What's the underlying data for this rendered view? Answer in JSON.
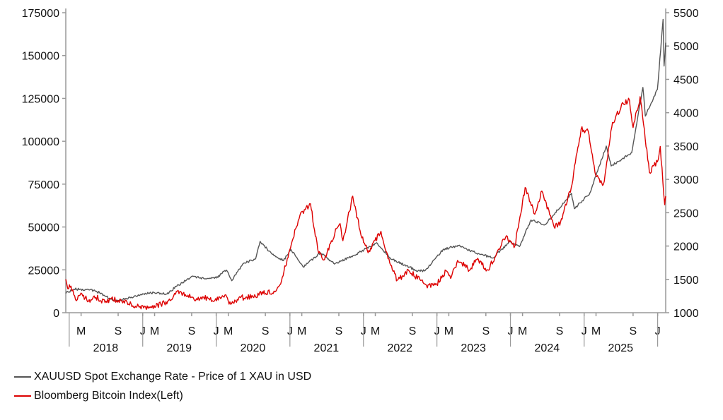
{
  "colors": {
    "gold": "#555555",
    "bitcoin": "#dd0000",
    "axis": "#999999"
  },
  "chart_data": {
    "type": "line",
    "x_range": [
      "2017-12-15",
      "2026-02-10"
    ],
    "y_left": {
      "min": 0,
      "max": 175000,
      "ticks": [
        "0",
        "25000",
        "50000",
        "75000",
        "100000",
        "125000",
        "150000",
        "175000"
      ]
    },
    "y_right": {
      "min": 1000,
      "max": 5500,
      "ticks": [
        "1000",
        "1500",
        "2000",
        "2500",
        "3000",
        "3500",
        "4000",
        "4500",
        "5000",
        "5500"
      ]
    },
    "month_ticks": [
      "M",
      "S",
      "J",
      "M",
      "S",
      "J",
      "M",
      "S",
      "J",
      "M",
      "S",
      "J",
      "M",
      "S",
      "J",
      "M",
      "S",
      "J",
      "M",
      "S",
      "J",
      "M",
      "S",
      "J",
      "M",
      "S",
      "J"
    ],
    "years": [
      "2018",
      "2019",
      "2020",
      "2021",
      "2022",
      "2023",
      "2024",
      "2025"
    ],
    "series": [
      {
        "name": "XAUUSD Spot Exchange Rate - Price of 1 XAU in USD",
        "axis": "right",
        "points": [
          [
            "2017-12-15",
            1290
          ],
          [
            "2018-01-25",
            1355
          ],
          [
            "2018-04-15",
            1345
          ],
          [
            "2018-06-01",
            1300
          ],
          [
            "2018-08-16",
            1175
          ],
          [
            "2018-11-01",
            1225
          ],
          [
            "2019-01-01",
            1285
          ],
          [
            "2019-03-01",
            1300
          ],
          [
            "2019-05-01",
            1280
          ],
          [
            "2019-06-20",
            1400
          ],
          [
            "2019-09-04",
            1550
          ],
          [
            "2019-11-01",
            1510
          ],
          [
            "2020-01-01",
            1520
          ],
          [
            "2020-02-20",
            1640
          ],
          [
            "2020-03-18",
            1480
          ],
          [
            "2020-05-15",
            1740
          ],
          [
            "2020-07-15",
            1810
          ],
          [
            "2020-08-06",
            2070
          ],
          [
            "2020-10-01",
            1890
          ],
          [
            "2020-11-30",
            1780
          ],
          [
            "2021-01-06",
            1950
          ],
          [
            "2021-03-08",
            1685
          ],
          [
            "2021-06-01",
            1900
          ],
          [
            "2021-08-10",
            1730
          ],
          [
            "2021-11-15",
            1860
          ],
          [
            "2022-03-08",
            2050
          ],
          [
            "2022-05-15",
            1810
          ],
          [
            "2022-09-28",
            1625
          ],
          [
            "2022-11-03",
            1630
          ],
          [
            "2023-01-31",
            1945
          ],
          [
            "2023-04-15",
            2010
          ],
          [
            "2023-06-30",
            1915
          ],
          [
            "2023-10-05",
            1820
          ],
          [
            "2023-12-28",
            2065
          ],
          [
            "2024-02-14",
            1990
          ],
          [
            "2024-04-12",
            2390
          ],
          [
            "2024-06-20",
            2320
          ],
          [
            "2024-07-20",
            2420
          ],
          [
            "2024-10-30",
            2790
          ],
          [
            "2024-11-14",
            2560
          ],
          [
            "2025-01-30",
            2800
          ],
          [
            "2025-04-21",
            3500
          ],
          [
            "2025-05-15",
            3200
          ],
          [
            "2025-08-25",
            3400
          ],
          [
            "2025-10-20",
            4380
          ],
          [
            "2025-11-01",
            3950
          ],
          [
            "2025-12-31",
            4350
          ],
          [
            "2026-01-28",
            5400
          ],
          [
            "2026-02-02",
            4700
          ],
          [
            "2026-02-10",
            5050
          ]
        ]
      },
      {
        "name": "Bloomberg Bitcoin Index(Left)",
        "axis": "left",
        "points": [
          [
            "2017-12-15",
            19500
          ],
          [
            "2017-12-25",
            14000
          ],
          [
            "2018-01-10",
            15500
          ],
          [
            "2018-02-06",
            7000
          ],
          [
            "2018-03-05",
            11000
          ],
          [
            "2018-04-06",
            6600
          ],
          [
            "2018-05-05",
            9800
          ],
          [
            "2018-06-28",
            5900
          ],
          [
            "2018-07-25",
            8200
          ],
          [
            "2018-10-15",
            6300
          ],
          [
            "2018-11-25",
            3800
          ],
          [
            "2018-12-15",
            3200
          ],
          [
            "2019-02-01",
            3500
          ],
          [
            "2019-04-01",
            4800
          ],
          [
            "2019-05-30",
            8500
          ],
          [
            "2019-06-26",
            13000
          ],
          [
            "2019-08-01",
            10500
          ],
          [
            "2019-09-25",
            8200
          ],
          [
            "2019-10-26",
            9300
          ],
          [
            "2019-12-17",
            6600
          ],
          [
            "2020-02-13",
            10300
          ],
          [
            "2020-03-13",
            4900
          ],
          [
            "2020-05-01",
            8800
          ],
          [
            "2020-07-01",
            9200
          ],
          [
            "2020-08-17",
            12300
          ],
          [
            "2020-10-10",
            11200
          ],
          [
            "2020-11-20",
            18500
          ],
          [
            "2021-01-08",
            40000
          ],
          [
            "2021-02-20",
            57000
          ],
          [
            "2021-04-13",
            63500
          ],
          [
            "2021-05-19",
            37000
          ],
          [
            "2021-06-22",
            31000
          ],
          [
            "2021-08-20",
            49000
          ],
          [
            "2021-09-07",
            52000
          ],
          [
            "2021-09-21",
            42000
          ],
          [
            "2021-11-09",
            68000
          ],
          [
            "2021-12-15",
            48000
          ],
          [
            "2022-01-24",
            35000
          ],
          [
            "2022-03-29",
            47500
          ],
          [
            "2022-05-12",
            29000
          ],
          [
            "2022-06-18",
            19000
          ],
          [
            "2022-08-15",
            24500
          ],
          [
            "2022-11-10",
            16000
          ],
          [
            "2022-12-31",
            16500
          ],
          [
            "2023-02-15",
            24500
          ],
          [
            "2023-03-10",
            20000
          ],
          [
            "2023-04-14",
            30500
          ],
          [
            "2023-06-15",
            25000
          ],
          [
            "2023-07-14",
            31000
          ],
          [
            "2023-09-11",
            25000
          ],
          [
            "2023-10-24",
            34500
          ],
          [
            "2023-12-08",
            44000
          ],
          [
            "2024-01-23",
            39000
          ],
          [
            "2024-03-14",
            73000
          ],
          [
            "2024-05-01",
            57500
          ],
          [
            "2024-06-05",
            71000
          ],
          [
            "2024-08-05",
            50000
          ],
          [
            "2024-09-06",
            53000
          ],
          [
            "2024-10-29",
            73000
          ],
          [
            "2024-12-17",
            107000
          ],
          [
            "2025-01-21",
            106000
          ],
          [
            "2025-02-28",
            80000
          ],
          [
            "2025-04-07",
            75000
          ],
          [
            "2025-05-22",
            111000
          ],
          [
            "2025-07-14",
            122000
          ],
          [
            "2025-08-14",
            124000
          ],
          [
            "2025-09-01",
            108000
          ],
          [
            "2025-10-06",
            126000
          ],
          [
            "2025-11-21",
            82000
          ],
          [
            "2025-12-31",
            88000
          ],
          [
            "2026-01-14",
            97000
          ],
          [
            "2026-02-05",
            63000
          ],
          [
            "2026-02-10",
            68000
          ]
        ]
      }
    ]
  }
}
